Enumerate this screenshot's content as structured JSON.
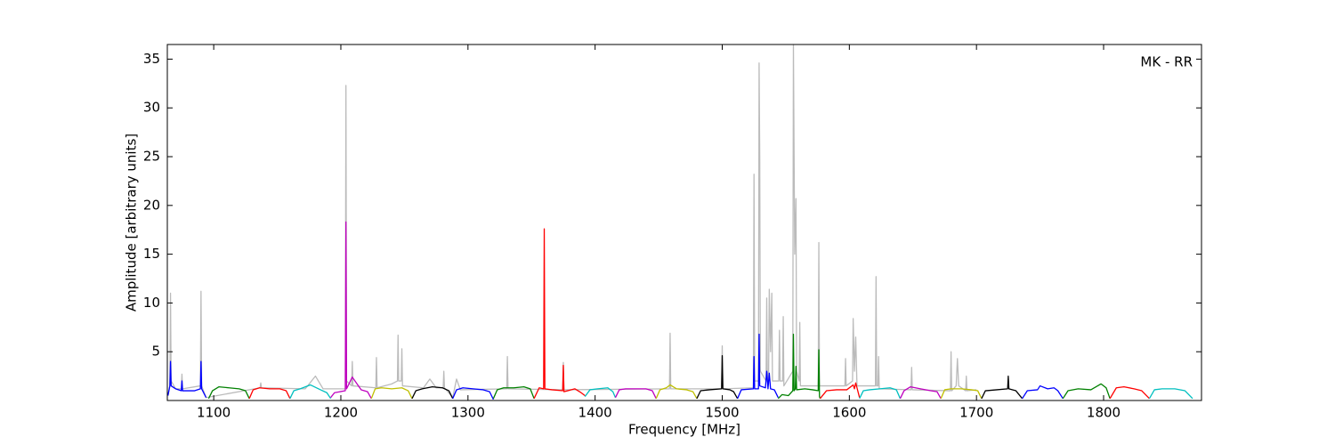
{
  "chart_data": {
    "type": "line",
    "annotation": "MK - RR",
    "xlabel": "Frequency [MHz]",
    "ylabel": "Amplitude [arbitrary units]",
    "xlim": [
      1063.5,
      1877
    ],
    "ylim": [
      0,
      36.5
    ],
    "xticks": [
      1100,
      1200,
      1300,
      1400,
      1500,
      1600,
      1700,
      1800
    ],
    "yticks": [
      5,
      10,
      15,
      20,
      25,
      30,
      35
    ],
    "grid": false,
    "series": [
      {
        "color": "#bbbbbb",
        "x": [
          1064,
          1065.5,
          1066,
          1066.5,
          1070,
          1074.5,
          1075,
          1075.5,
          1089.5,
          1090,
          1090.5,
          1094,
          1136.5,
          1137,
          1137.5,
          1172,
          1180,
          1186,
          1203.5,
          1204,
          1204.5,
          1208.5,
          1209,
          1209.5,
          1227.5,
          1228,
          1228.5,
          1240,
          1244.5,
          1245,
          1245.5,
          1247.5,
          1248,
          1248.5,
          1265,
          1270,
          1275,
          1280.5,
          1281,
          1281.5,
          1288,
          1291,
          1294,
          1330.5,
          1331,
          1331.5,
          1374.5,
          1375,
          1375.5,
          1458.5,
          1459,
          1459.5,
          1499.5,
          1500,
          1500.5,
          1524.5,
          1525,
          1525.5,
          1528.5,
          1529,
          1529.5,
          1530,
          1534.5,
          1535,
          1535.5,
          1536.5,
          1537,
          1538,
          1539,
          1539.5,
          1544.5,
          1545,
          1545.5,
          1547.5,
          1548,
          1548.5,
          1555.5,
          1556,
          1557,
          1558,
          1558.5,
          1560.5,
          1561,
          1561.5,
          1575.5,
          1576,
          1576.5,
          1596.5,
          1597,
          1597.5,
          1602.5,
          1603,
          1604,
          1605,
          1606,
          1620.5,
          1621,
          1621.5,
          1622.5,
          1623,
          1623.5,
          1648.5,
          1649,
          1649.5,
          1679.5,
          1680,
          1680.5,
          1684,
          1685,
          1686,
          1691.5,
          1692,
          1692.5,
          1700
        ],
        "values": [
          0.5,
          1.5,
          11,
          2,
          1.2,
          1.2,
          2.7,
          1.2,
          1.5,
          11.2,
          1.5,
          0.3,
          1.3,
          1.8,
          1.3,
          1.2,
          2.5,
          1.2,
          1.2,
          32.3,
          2,
          1.5,
          4,
          1.5,
          1.3,
          4.4,
          1.3,
          1.7,
          2,
          6.7,
          2,
          2,
          5.3,
          1.5,
          1.3,
          2.2,
          1.3,
          1.3,
          3,
          1.3,
          0.3,
          2.2,
          1.1,
          1.2,
          4.5,
          1.2,
          1.1,
          3.9,
          1.1,
          1.2,
          6.9,
          1.2,
          1.2,
          5.6,
          1.2,
          1.3,
          23.2,
          2,
          2,
          34.6,
          25,
          3,
          2,
          10.5,
          2,
          3,
          11.4,
          5,
          11,
          2,
          2,
          7.2,
          2,
          2,
          8.6,
          1.5,
          3,
          36.5,
          15,
          20.7,
          3,
          2,
          8,
          1.5,
          1.5,
          16.2,
          1.5,
          1.5,
          4.3,
          1.5,
          2,
          8.4,
          3,
          6.5,
          1.5,
          1.5,
          12.7,
          1.5,
          1.5,
          4.5,
          1.2,
          1.1,
          3.4,
          1.1,
          1,
          5,
          1,
          1.5,
          4.3,
          1.5,
          1,
          2.5,
          1,
          1.1
        ]
      },
      {
        "color": "#0000ff",
        "x": [
          1064,
          1065.5,
          1066,
          1066.5,
          1070,
          1074.5,
          1075,
          1075.5,
          1085,
          1089.5,
          1090,
          1090.5,
          1094
        ],
        "values": [
          0.5,
          1.5,
          4,
          1.5,
          1.2,
          1.0,
          2,
          1.0,
          1.0,
          1.2,
          4,
          1.2,
          0.3
        ]
      },
      {
        "color": "#008000",
        "x": [
          1096,
          1099,
          1104,
          1112,
          1120,
          1125,
          1128
        ],
        "values": [
          0.2,
          1.0,
          1.4,
          1.3,
          1.2,
          1.0,
          0.2
        ]
      },
      {
        "color": "#ff0000",
        "x": [
          1128,
          1131,
          1136,
          1144,
          1152,
          1157,
          1160
        ],
        "values": [
          0.2,
          1.1,
          1.3,
          1.2,
          1.2,
          1.0,
          0.2
        ]
      },
      {
        "color": "#00bfbf",
        "x": [
          1160,
          1163,
          1168,
          1176,
          1184,
          1189,
          1192
        ],
        "values": [
          0.2,
          1.0,
          1.2,
          1.6,
          1.1,
          0.8,
          0.2
        ]
      },
      {
        "color": "#bf00bf",
        "x": [
          1192,
          1195,
          1203.5,
          1204,
          1204.5,
          1209,
          1216,
          1221,
          1224
        ],
        "values": [
          0.3,
          0.8,
          1.0,
          18.3,
          1.2,
          2.4,
          1.1,
          0.9,
          0.2
        ]
      },
      {
        "color": "#bfbf00",
        "x": [
          1224,
          1227,
          1232,
          1240,
          1248,
          1253,
          1256
        ],
        "values": [
          0.2,
          1.2,
          1.3,
          1.2,
          1.3,
          1.0,
          0.2
        ]
      },
      {
        "color": "#000000",
        "x": [
          1256,
          1259,
          1264,
          1272,
          1280,
          1285,
          1288
        ],
        "values": [
          0.2,
          1.0,
          1.2,
          1.4,
          1.3,
          1.0,
          0.2
        ]
      },
      {
        "color": "#0000ff",
        "x": [
          1288,
          1291,
          1296,
          1304,
          1312,
          1317,
          1320
        ],
        "values": [
          0.2,
          1.1,
          1.3,
          1.2,
          1.1,
          0.9,
          0.1
        ]
      },
      {
        "color": "#008000",
        "x": [
          1320,
          1323,
          1328,
          1336,
          1344,
          1349,
          1352
        ],
        "values": [
          0.2,
          1.1,
          1.3,
          1.3,
          1.4,
          1.2,
          0.2
        ]
      },
      {
        "color": "#ff0000",
        "x": [
          1352,
          1356,
          1359.5,
          1360,
          1360.5,
          1366,
          1374.5,
          1375,
          1375.5,
          1384,
          1389,
          1392
        ],
        "values": [
          0.2,
          1.3,
          1.2,
          17.6,
          1.2,
          1.1,
          1.0,
          3.6,
          0.9,
          1.2,
          0.8,
          0.5
        ]
      },
      {
        "color": "#00bfbf",
        "x": [
          1392,
          1396,
          1402,
          1410,
          1414,
          1416
        ],
        "values": [
          0.4,
          1.1,
          1.2,
          1.3,
          0.9,
          0.3
        ]
      },
      {
        "color": "#bf00bf",
        "x": [
          1416,
          1419,
          1424,
          1432,
          1440,
          1445,
          1448
        ],
        "values": [
          0.3,
          1.1,
          1.2,
          1.2,
          1.2,
          1.0,
          0.2
        ]
      },
      {
        "color": "#bfbf00",
        "x": [
          1448,
          1451,
          1456,
          1459,
          1464,
          1472,
          1477,
          1480
        ],
        "values": [
          0.2,
          1.1,
          1.3,
          1.6,
          1.2,
          1.1,
          0.9,
          0.2
        ]
      },
      {
        "color": "#000000",
        "x": [
          1480,
          1483,
          1490,
          1499.5,
          1500,
          1500.5,
          1506,
          1509,
          1512
        ],
        "values": [
          0.2,
          1.0,
          1.1,
          1.2,
          4.6,
          1.2,
          1.1,
          0.9,
          0.2
        ]
      },
      {
        "color": "#0000ff",
        "x": [
          1512,
          1515,
          1524.5,
          1525,
          1525.5,
          1528.5,
          1529,
          1529.5,
          1534,
          1535,
          1536,
          1537,
          1538,
          1541,
          1544
        ],
        "values": [
          0.2,
          1.1,
          1.2,
          4.5,
          1.2,
          1.2,
          6.8,
          1.5,
          1.3,
          3,
          1.2,
          2.8,
          1.2,
          1.1,
          0.3
        ]
      },
      {
        "color": "#008000",
        "x": [
          1544,
          1547,
          1552,
          1555.5,
          1556,
          1556.5,
          1557.5,
          1558,
          1558.5,
          1565,
          1571,
          1575.5,
          1576,
          1576.5,
          1577
        ],
        "values": [
          0.2,
          0.6,
          0.5,
          1,
          6.8,
          1,
          1.2,
          3.5,
          1.1,
          1.2,
          1.1,
          1.0,
          5.2,
          0.4,
          0.2
        ]
      },
      {
        "color": "#ff0000",
        "x": [
          1577,
          1582,
          1590,
          1598,
          1603,
          1604,
          1605,
          1608
        ],
        "values": [
          0.2,
          1.0,
          1.1,
          1.1,
          1.6,
          1.2,
          1.8,
          0.3
        ]
      },
      {
        "color": "#00bfbf",
        "x": [
          1608,
          1611,
          1616,
          1624,
          1632,
          1637,
          1640
        ],
        "values": [
          0.2,
          1.0,
          1.1,
          1.2,
          1.3,
          1.1,
          0.2
        ]
      },
      {
        "color": "#bf00bf",
        "x": [
          1640,
          1643,
          1648,
          1656,
          1664,
          1669,
          1672
        ],
        "values": [
          0.2,
          1.0,
          1.4,
          1.2,
          1.0,
          0.9,
          0.2
        ]
      },
      {
        "color": "#bfbf00",
        "x": [
          1672,
          1675,
          1680,
          1688,
          1696,
          1701,
          1704
        ],
        "values": [
          0.2,
          1.1,
          1.2,
          1.2,
          1.1,
          1.0,
          0.2
        ]
      },
      {
        "color": "#000000",
        "x": [
          1704,
          1707,
          1716,
          1724.5,
          1725,
          1725.5,
          1731,
          1736
        ],
        "values": [
          0.2,
          1.0,
          1.1,
          1.2,
          2.5,
          1.2,
          1.0,
          0.2
        ]
      },
      {
        "color": "#0000ff",
        "x": [
          1736,
          1740,
          1748,
          1750,
          1756,
          1761,
          1764,
          1768
        ],
        "values": [
          0.2,
          1.0,
          1.1,
          1.5,
          1.2,
          1.3,
          1.0,
          0.2
        ]
      },
      {
        "color": "#008000",
        "x": [
          1768,
          1772,
          1780,
          1790,
          1798,
          1802,
          1805
        ],
        "values": [
          0.2,
          1.0,
          1.2,
          1.1,
          1.7,
          1.3,
          0.2
        ]
      },
      {
        "color": "#ff0000",
        "x": [
          1805,
          1810,
          1816,
          1824,
          1830,
          1836
        ],
        "values": [
          0.2,
          1.3,
          1.4,
          1.2,
          1.0,
          0.2
        ]
      },
      {
        "color": "#00bfbf",
        "x": [
          1836,
          1840,
          1846,
          1856,
          1864,
          1870
        ],
        "values": [
          0.2,
          1.1,
          1.2,
          1.2,
          1.0,
          0.2
        ]
      }
    ]
  }
}
